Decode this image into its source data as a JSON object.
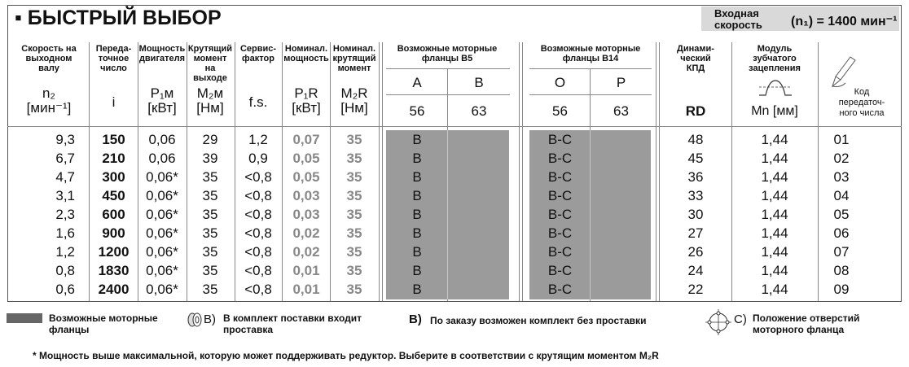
{
  "title": "▪ БЫСТРЫЙ ВЫБОР",
  "input_speed": {
    "label_line1": "Входная",
    "label_line2": "скорость",
    "value": "(n₁) = 1400 мин⁻¹"
  },
  "headers": {
    "n2": {
      "line1": "Скорость на",
      "line2": "выходном",
      "line3": "валу",
      "sym": "n₂",
      "unit": "[мин⁻¹]"
    },
    "ratio": {
      "line1": "Переда-",
      "line2": "точное",
      "line3": "число",
      "sym": "i"
    },
    "power": {
      "line1": "Мощность",
      "line2": "двигателя",
      "sym": "P₁ᴍ",
      "unit": "[кВт]"
    },
    "torque": {
      "line1": "Крутящий",
      "line2": "момент на",
      "line3": "выходе",
      "sym": "M₂ᴍ",
      "unit": "[Нм]"
    },
    "service": {
      "line1": "Сервис-",
      "line2": "фактор",
      "sym": "f.s."
    },
    "nom_power": {
      "line1": "Номинал.",
      "line2": "мощность",
      "sym": "P₁R",
      "unit": "[кВт]"
    },
    "nom_torque": {
      "line1": "Номинал.",
      "line2": "крутящий",
      "line3": "момент",
      "sym": "M₂R",
      "unit": "[Нм]"
    },
    "b5": {
      "line1": "Возможные моторные",
      "line2": "фланцы B5",
      "col_a": "A",
      "col_b": "B",
      "num_a": "56",
      "num_b": "63"
    },
    "b14": {
      "line1": "Возможные моторные",
      "line2": "фланцы B14",
      "col_a": "O",
      "col_b": "P",
      "num_a": "56",
      "num_b": "63"
    },
    "eff": {
      "line1": "Динами-",
      "line2": "ческий",
      "line3": "КПД",
      "sym": "RD"
    },
    "module": {
      "line1": "Модуль",
      "line2": "зубчатого",
      "line3": "зацепления",
      "sym": "Mn [мм]"
    },
    "code": {
      "line1": "Код",
      "line2": "передаточ-",
      "line3": "ного числа"
    }
  },
  "rows": [
    {
      "n2": "9,3",
      "i": "150",
      "p1m": "0,06",
      "m2m": "29",
      "fs": "1,2",
      "p1r": "0,07",
      "m2r": "35",
      "b5": "B",
      "b14": "B-C",
      "rd": "48",
      "mn": "1,44",
      "code": "01"
    },
    {
      "n2": "6,7",
      "i": "210",
      "p1m": "0,06",
      "m2m": "39",
      "fs": "0,9",
      "p1r": "0,05",
      "m2r": "35",
      "b5": "B",
      "b14": "B-C",
      "rd": "45",
      "mn": "1,44",
      "code": "02"
    },
    {
      "n2": "4,7",
      "i": "300",
      "p1m": "0,06*",
      "m2m": "35",
      "fs": "<0,8",
      "p1r": "0,05",
      "m2r": "35",
      "b5": "B",
      "b14": "B-C",
      "rd": "36",
      "mn": "1,44",
      "code": "03"
    },
    {
      "n2": "3,1",
      "i": "450",
      "p1m": "0,06*",
      "m2m": "35",
      "fs": "<0,8",
      "p1r": "0,03",
      "m2r": "35",
      "b5": "B",
      "b14": "B-C",
      "rd": "33",
      "mn": "1,44",
      "code": "04"
    },
    {
      "n2": "2,3",
      "i": "600",
      "p1m": "0,06*",
      "m2m": "35",
      "fs": "<0,8",
      "p1r": "0,03",
      "m2r": "35",
      "b5": "B",
      "b14": "B-C",
      "rd": "30",
      "mn": "1,44",
      "code": "05"
    },
    {
      "n2": "1,6",
      "i": "900",
      "p1m": "0,06*",
      "m2m": "35",
      "fs": "<0,8",
      "p1r": "0,02",
      "m2r": "35",
      "b5": "B",
      "b14": "B-C",
      "rd": "27",
      "mn": "1,44",
      "code": "06"
    },
    {
      "n2": "1,2",
      "i": "1200",
      "p1m": "0,06*",
      "m2m": "35",
      "fs": "<0,8",
      "p1r": "0,02",
      "m2r": "35",
      "b5": "B",
      "b14": "B-C",
      "rd": "26",
      "mn": "1,44",
      "code": "07"
    },
    {
      "n2": "0,8",
      "i": "1830",
      "p1m": "0,06*",
      "m2m": "35",
      "fs": "<0,8",
      "p1r": "0,01",
      "m2r": "35",
      "b5": "B",
      "b14": "B-C",
      "rd": "24",
      "mn": "1,44",
      "code": "08"
    },
    {
      "n2": "0,6",
      "i": "2400",
      "p1m": "0,06*",
      "m2m": "35",
      "fs": "<0,8",
      "p1r": "0,01",
      "m2r": "35",
      "b5": "B",
      "b14": "B-C",
      "rd": "22",
      "mn": "1,44",
      "code": "09"
    }
  ],
  "legend": {
    "flanges_line1": "Возможные моторные",
    "flanges_line2": "фланцы",
    "spacer_sym": "B)",
    "spacer_line1": "В комплект поставки входит",
    "spacer_line2": "проставка",
    "order_sym": "B)",
    "order_text": "По заказу возможен комплект без проставки",
    "holes_sym": "C)",
    "holes_line1": "Положение отверстий",
    "holes_line2": "моторного фланца"
  },
  "footnote": "* Мощность выше максимальной, которую может поддерживать редуктор. Выберите в соответствии с крутящим моментом M₂R",
  "colors": {
    "gray_fill": "#9b9b9b",
    "muted_text": "#888888",
    "box_bg": "#d9d9d9"
  }
}
